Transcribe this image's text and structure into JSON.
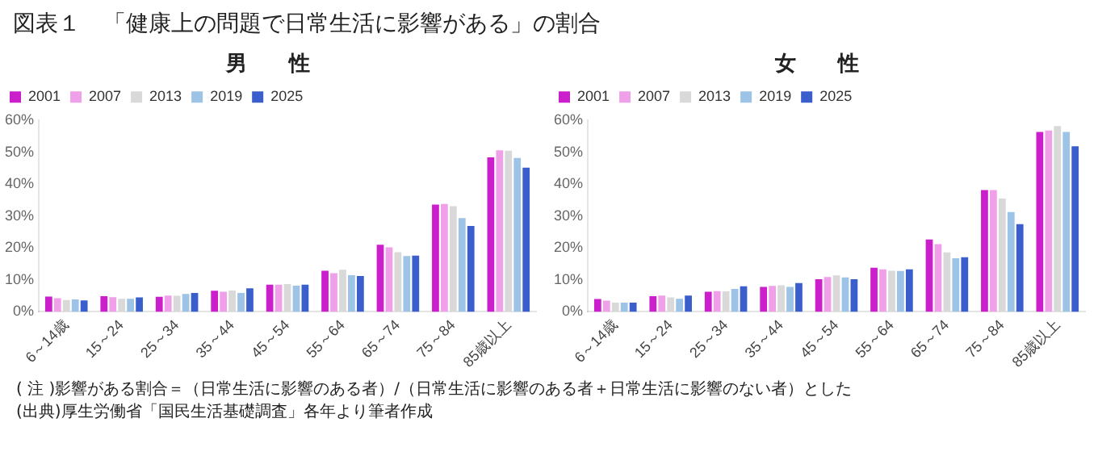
{
  "chart_data": [
    {
      "type": "other",
      "title": "図表１　「健康上の問題で日常生活に影響がある」の割合",
      "annotations": [
        "( 注 )影響がある割合＝（日常生活に影響のある者）/（日常生活に影響のある者＋日常生活に影響のない者）とした",
        "(出典)厚生労働省「国民生活基礎調査」各年より筆者作成"
      ]
    },
    {
      "type": "bar",
      "title": "男　　性",
      "categories": [
        "6～14歳",
        "15～24",
        "25～34",
        "35～44",
        "45～54",
        "55～64",
        "65～74",
        "75～84",
        "85歳以上"
      ],
      "ylim": [
        0,
        60
      ],
      "yticks": [
        {
          "value": 0,
          "label": "0%"
        },
        {
          "value": 10,
          "label": "10%"
        },
        {
          "value": 20,
          "label": "20%"
        },
        {
          "value": 30,
          "label": "30%"
        },
        {
          "value": 40,
          "label": "40%"
        },
        {
          "value": 50,
          "label": "50%"
        },
        {
          "value": 60,
          "label": "60%"
        }
      ],
      "legend": "top left",
      "series": [
        {
          "name": "2001",
          "color": "#cc1fcc",
          "values": [
            4.8,
            4.9,
            4.7,
            6.6,
            8.5,
            12.9,
            21.0,
            33.6,
            48.4
          ]
        },
        {
          "name": "2007",
          "color": "#f0a0e8",
          "values": [
            4.3,
            4.6,
            5.1,
            6.3,
            8.5,
            12.1,
            20.2,
            33.8,
            50.6
          ]
        },
        {
          "name": "2013",
          "color": "#d9d9d9",
          "values": [
            3.7,
            4.1,
            5.0,
            6.7,
            8.7,
            13.2,
            18.7,
            33.1,
            50.5
          ]
        },
        {
          "name": "2019",
          "color": "#9dc3e6",
          "values": [
            3.9,
            4.1,
            5.6,
            5.9,
            8.2,
            11.5,
            17.5,
            29.4,
            48.2
          ]
        },
        {
          "name": "2025",
          "color": "#3a5fcd",
          "values": [
            3.6,
            4.5,
            5.9,
            7.4,
            8.5,
            11.2,
            17.6,
            26.9,
            45.2
          ]
        }
      ]
    },
    {
      "type": "bar",
      "title": "女　　性",
      "categories": [
        "6～14歳",
        "15～24",
        "25～34",
        "35～44",
        "45～54",
        "55～64",
        "65～74",
        "75～84",
        "85歳以上"
      ],
      "ylim": [
        0,
        60
      ],
      "yticks": [
        {
          "value": 0,
          "label": "0%"
        },
        {
          "value": 10,
          "label": "10%"
        },
        {
          "value": 20,
          "label": "20%"
        },
        {
          "value": 30,
          "label": "30%"
        },
        {
          "value": 40,
          "label": "40%"
        },
        {
          "value": 50,
          "label": "50%"
        },
        {
          "value": 60,
          "label": "60%"
        }
      ],
      "legend": "top left",
      "series": [
        {
          "name": "2001",
          "color": "#cc1fcc",
          "values": [
            4.0,
            4.9,
            6.3,
            7.8,
            10.2,
            13.8,
            22.7,
            38.2,
            56.4
          ]
        },
        {
          "name": "2007",
          "color": "#f0a0e8",
          "values": [
            3.5,
            5.1,
            6.5,
            8.1,
            10.9,
            13.3,
            21.2,
            38.2,
            56.8
          ]
        },
        {
          "name": "2013",
          "color": "#d9d9d9",
          "values": [
            2.9,
            4.5,
            6.4,
            8.3,
            11.4,
            12.9,
            18.6,
            35.5,
            58.2
          ]
        },
        {
          "name": "2019",
          "color": "#9dc3e6",
          "values": [
            2.9,
            4.1,
            7.2,
            7.8,
            10.8,
            12.8,
            16.8,
            31.3,
            56.4
          ]
        },
        {
          "name": "2025",
          "color": "#3a5fcd",
          "values": [
            2.9,
            5.1,
            8.0,
            9.0,
            10.2,
            13.3,
            17.1,
            27.5,
            51.9
          ]
        }
      ]
    }
  ]
}
